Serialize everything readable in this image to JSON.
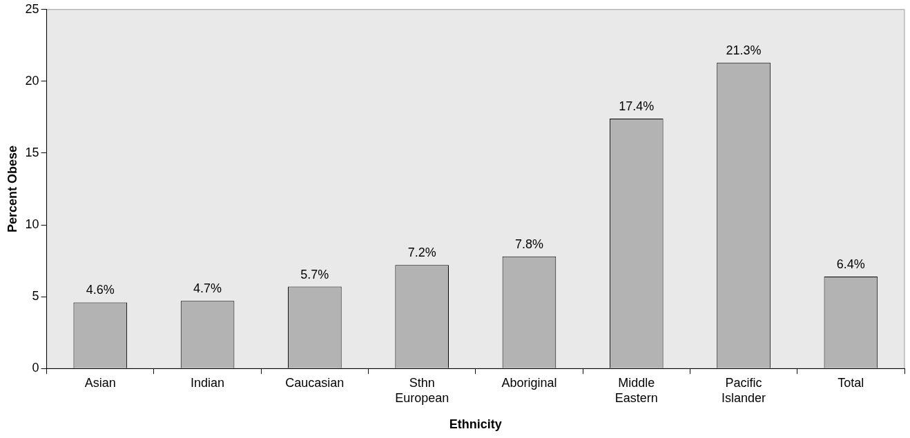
{
  "chart_data": {
    "type": "bar",
    "xlabel": "Ethnicity",
    "ylabel": "Percent Obese",
    "categories": [
      "Asian",
      "Indian",
      "Caucasian",
      "Sthn European",
      "Aboriginal",
      "Middle Eastern",
      "Pacific Islander",
      "Total"
    ],
    "values": [
      4.6,
      4.7,
      5.7,
      7.2,
      7.8,
      17.4,
      21.3,
      6.4
    ],
    "value_labels": [
      "4.6%",
      "4.7%",
      "5.7%",
      "7.2%",
      "7.8%",
      "17.4%",
      "21.3%",
      "6.4%"
    ],
    "color": "#b3b3b3",
    "ylim": [
      0,
      25
    ],
    "yticks": [
      0,
      5,
      10,
      15,
      20,
      25
    ],
    "grid": false,
    "legend": false
  }
}
